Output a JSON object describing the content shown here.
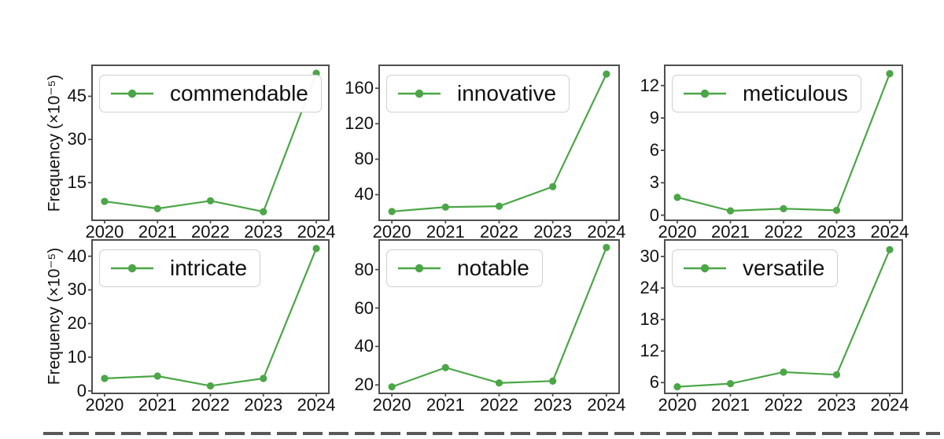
{
  "figure": {
    "line_color": "#4ba647",
    "marker_color": "#4ba647",
    "spine_color": "#4f4f4f",
    "legend_border_color": "#cfcfcf",
    "background": "#ffffff",
    "grid": false,
    "legend_position": "upper left"
  },
  "chart_data": [
    {
      "type": "line",
      "title": "commendable",
      "ylabel": "Frequency (×10⁻⁵)",
      "categories": [
        "2020",
        "2021",
        "2022",
        "2023",
        "2024"
      ],
      "values": [
        8.5,
        6.0,
        8.7,
        4.9,
        53.0
      ],
      "yticks": [
        15,
        30,
        45
      ],
      "ylim": [
        2.2,
        55.5
      ],
      "legend_position": "upper left"
    },
    {
      "type": "line",
      "title": "innovative",
      "categories": [
        "2020",
        "2021",
        "2022",
        "2023",
        "2024"
      ],
      "values": [
        21,
        26,
        27,
        49,
        176
      ],
      "yticks": [
        40,
        80,
        120,
        160
      ],
      "ylim": [
        12,
        185
      ],
      "legend_position": "upper left"
    },
    {
      "type": "line",
      "title": "meticulous",
      "categories": [
        "2020",
        "2021",
        "2022",
        "2023",
        "2024"
      ],
      "values": [
        1.65,
        0.4,
        0.6,
        0.45,
        13.1
      ],
      "yticks": [
        0,
        3,
        6,
        9,
        12
      ],
      "ylim": [
        -0.4,
        13.8
      ],
      "legend_position": "upper left"
    },
    {
      "type": "line",
      "title": "intricate",
      "ylabel": "Frequency (×10⁻⁵)",
      "categories": [
        "2020",
        "2021",
        "2022",
        "2023",
        "2024"
      ],
      "values": [
        3.7,
        4.4,
        1.5,
        3.7,
        42.3
      ],
      "yticks": [
        0,
        10,
        20,
        30,
        40
      ],
      "ylim": [
        -0.5,
        44.6
      ],
      "legend_position": "upper left"
    },
    {
      "type": "line",
      "title": "notable",
      "categories": [
        "2020",
        "2021",
        "2022",
        "2023",
        "2024"
      ],
      "values": [
        19,
        29,
        21,
        22,
        91.5
      ],
      "yticks": [
        20,
        40,
        60,
        80
      ],
      "ylim": [
        16,
        95
      ],
      "legend_position": "upper left"
    },
    {
      "type": "line",
      "title": "versatile",
      "categories": [
        "2020",
        "2021",
        "2022",
        "2023",
        "2024"
      ],
      "values": [
        5.2,
        5.8,
        8.0,
        7.5,
        31.3
      ],
      "yticks": [
        6,
        12,
        18,
        24,
        30
      ],
      "ylim": [
        4.1,
        33
      ],
      "legend_position": "upper left"
    }
  ]
}
